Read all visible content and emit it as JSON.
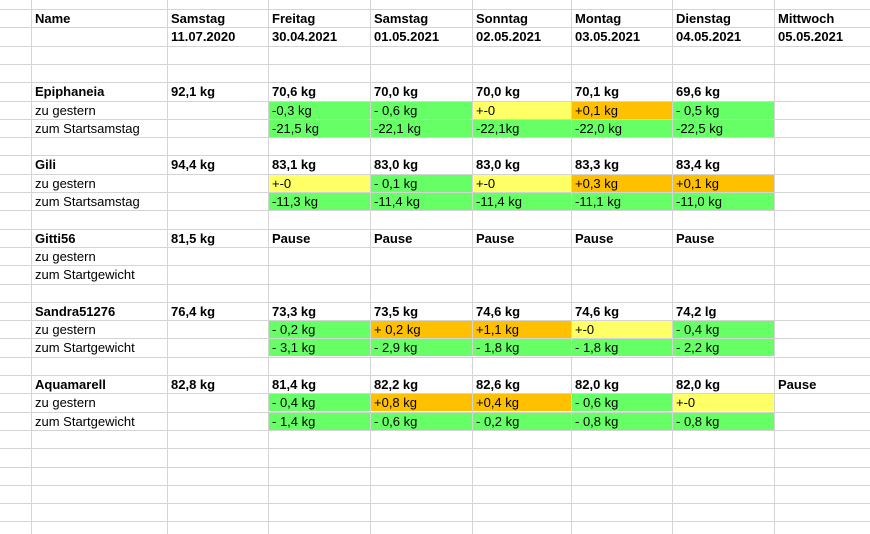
{
  "colors": {
    "green": "#66ff66",
    "yellow": "#ffff66",
    "orange": "#ffc000",
    "grid": "#d4d4d4"
  },
  "header": {
    "name_label": "Name",
    "days": [
      {
        "weekday": "Samstag",
        "date": "11.07.2020"
      },
      {
        "weekday": "Freitag",
        "date": "30.04.2021"
      },
      {
        "weekday": "Samstag",
        "date": "01.05.2021"
      },
      {
        "weekday": "Sonntag",
        "date": "02.05.2021"
      },
      {
        "weekday": "Montag",
        "date": "03.05.2021"
      },
      {
        "weekday": "Dienstag",
        "date": "04.05.2021"
      },
      {
        "weekday": "Mittwoch",
        "date": "05.05.2021"
      }
    ]
  },
  "rows": [
    {
      "label": "Epiphaneia",
      "bold": true,
      "cells": [
        {
          "v": "92,1 kg"
        },
        {
          "v": "70,6 kg"
        },
        {
          "v": "70,0 kg"
        },
        {
          "v": "70,0 kg"
        },
        {
          "v": "70,1 kg"
        },
        {
          "v": "69,6 kg"
        },
        {
          "v": ""
        }
      ]
    },
    {
      "label": "zu gestern",
      "bold": false,
      "cells": [
        {
          "v": ""
        },
        {
          "v": "-0,3 kg",
          "c": "green"
        },
        {
          "v": "- 0,6 kg",
          "c": "green"
        },
        {
          "v": "+-0",
          "c": "yellow"
        },
        {
          "v": "+0,1 kg",
          "c": "orange"
        },
        {
          "v": "- 0,5 kg",
          "c": "green"
        },
        {
          "v": ""
        }
      ]
    },
    {
      "label": "zum Startsamstag",
      "bold": false,
      "cells": [
        {
          "v": ""
        },
        {
          "v": "-21,5 kg",
          "c": "green"
        },
        {
          "v": "-22,1 kg",
          "c": "green"
        },
        {
          "v": "-22,1kg",
          "c": "green"
        },
        {
          "v": "-22,0 kg",
          "c": "green"
        },
        {
          "v": "-22,5 kg",
          "c": "green"
        },
        {
          "v": ""
        }
      ]
    },
    {
      "spacer": true
    },
    {
      "label": "Gili",
      "bold": true,
      "cells": [
        {
          "v": "94,4 kg"
        },
        {
          "v": "83,1 kg"
        },
        {
          "v": "83,0 kg"
        },
        {
          "v": "83,0 kg"
        },
        {
          "v": "83,3 kg"
        },
        {
          "v": "83,4 kg"
        },
        {
          "v": ""
        }
      ]
    },
    {
      "label": "zu gestern",
      "bold": false,
      "cells": [
        {
          "v": ""
        },
        {
          "v": "+-0",
          "c": "yellow"
        },
        {
          "v": "- 0,1 kg",
          "c": "green"
        },
        {
          "v": "+-0",
          "c": "yellow"
        },
        {
          "v": "+0,3 kg",
          "c": "orange"
        },
        {
          "v": "+0,1 kg",
          "c": "orange"
        },
        {
          "v": ""
        }
      ]
    },
    {
      "label": "zum Startsamstag",
      "bold": false,
      "cells": [
        {
          "v": ""
        },
        {
          "v": "-11,3 kg",
          "c": "green"
        },
        {
          "v": "-11,4 kg",
          "c": "green"
        },
        {
          "v": "-11,4 kg",
          "c": "green"
        },
        {
          "v": "-11,1 kg",
          "c": "green"
        },
        {
          "v": "-11,0 kg",
          "c": "green"
        },
        {
          "v": ""
        }
      ]
    },
    {
      "spacer": true
    },
    {
      "label": "Gitti56",
      "bold": true,
      "cells": [
        {
          "v": "81,5 kg"
        },
        {
          "v": "Pause"
        },
        {
          "v": "Pause"
        },
        {
          "v": "Pause"
        },
        {
          "v": "Pause"
        },
        {
          "v": "Pause"
        },
        {
          "v": ""
        }
      ]
    },
    {
      "label": "zu gestern",
      "bold": false,
      "cells": [
        {
          "v": ""
        },
        {
          "v": ""
        },
        {
          "v": ""
        },
        {
          "v": ""
        },
        {
          "v": ""
        },
        {
          "v": ""
        },
        {
          "v": ""
        }
      ]
    },
    {
      "label": "zum Startgewicht",
      "bold": false,
      "cells": [
        {
          "v": ""
        },
        {
          "v": ""
        },
        {
          "v": ""
        },
        {
          "v": ""
        },
        {
          "v": ""
        },
        {
          "v": ""
        },
        {
          "v": ""
        }
      ]
    },
    {
      "spacer": true
    },
    {
      "label": "Sandra51276",
      "bold": true,
      "cells": [
        {
          "v": "76,4 kg"
        },
        {
          "v": "73,3 kg"
        },
        {
          "v": "73,5 kg"
        },
        {
          "v": "74,6 kg"
        },
        {
          "v": "74,6 kg"
        },
        {
          "v": "74,2 lg"
        },
        {
          "v": ""
        }
      ]
    },
    {
      "label": "zu gestern",
      "bold": false,
      "cells": [
        {
          "v": ""
        },
        {
          "v": "- 0,2 kg",
          "c": "green"
        },
        {
          "v": "+ 0,2 kg",
          "c": "orange"
        },
        {
          "v": "+1,1 kg",
          "c": "orange"
        },
        {
          "v": "+-0",
          "c": "yellow"
        },
        {
          "v": "- 0,4 kg",
          "c": "green"
        },
        {
          "v": ""
        }
      ]
    },
    {
      "label": "zum Startgewicht",
      "bold": false,
      "cells": [
        {
          "v": ""
        },
        {
          "v": "- 3,1 kg",
          "c": "green"
        },
        {
          "v": "- 2,9 kg",
          "c": "green"
        },
        {
          "v": "- 1,8 kg",
          "c": "green"
        },
        {
          "v": "- 1,8 kg",
          "c": "green"
        },
        {
          "v": "- 2,2 kg",
          "c": "green"
        },
        {
          "v": ""
        }
      ]
    },
    {
      "spacer": true
    },
    {
      "label": "Aquamarell",
      "bold": true,
      "cells": [
        {
          "v": "82,8 kg"
        },
        {
          "v": "81,4 kg"
        },
        {
          "v": "82,2 kg"
        },
        {
          "v": "82,6 kg"
        },
        {
          "v": "82,0 kg"
        },
        {
          "v": "82,0 kg"
        },
        {
          "v": "Pause"
        }
      ]
    },
    {
      "label": "zu gestern",
      "bold": false,
      "cells": [
        {
          "v": ""
        },
        {
          "v": "- 0,4 kg",
          "c": "green"
        },
        {
          "v": "+0,8 kg",
          "c": "orange"
        },
        {
          "v": "+0,4 kg",
          "c": "orange"
        },
        {
          "v": "- 0,6 kg",
          "c": "green"
        },
        {
          "v": "+-0",
          "c": "yellow"
        },
        {
          "v": ""
        }
      ]
    },
    {
      "label": "zum Startgewicht",
      "bold": false,
      "cells": [
        {
          "v": ""
        },
        {
          "v": "- 1,4 kg",
          "c": "green"
        },
        {
          "v": "- 0,6 kg",
          "c": "green"
        },
        {
          "v": "- 0,2 kg",
          "c": "green"
        },
        {
          "v": "- 0,8 kg",
          "c": "green"
        },
        {
          "v": "- 0,8 kg",
          "c": "green"
        },
        {
          "v": ""
        }
      ]
    }
  ]
}
